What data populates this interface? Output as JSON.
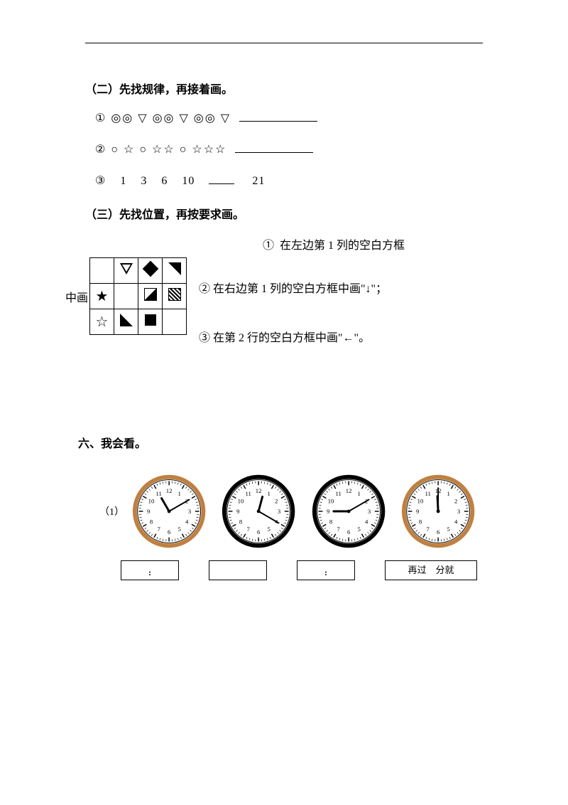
{
  "section2": {
    "title": "（二）先找规律，再接着画。",
    "q1_label": "①",
    "q1_pattern": "◎◎ ▽ ◎◎ ▽ ◎◎ ▽",
    "q2_label": "②",
    "q2_pattern": "○ ☆ ○ ☆☆ ○ ☆☆☆",
    "q3_label": "③",
    "q3_numbers": [
      "1",
      "3",
      "6",
      "10"
    ],
    "q3_tail": "21"
  },
  "section3": {
    "title": "（三）先找位置，再按要求画。",
    "grid_side_label": "中画",
    "instruction1_label": "①",
    "instruction1_text": "在左边第 1 列的空白方框",
    "instruction2_label": "②",
    "instruction2_text": "在右边第 1 列的空白方框中画\"↓\"；",
    "instruction3_label": "③",
    "instruction3_text": "在第 2 行的空白方框中画\"←\"。"
  },
  "section6": {
    "title": "六、我会看。",
    "q_label": "（1）",
    "box4_text": "再过　分就",
    "clocks": [
      {
        "hour_angle": -30,
        "minute_angle": 60,
        "rim": "#c08040"
      },
      {
        "hour_angle": 15,
        "minute_angle": 120,
        "rim": "#000"
      },
      {
        "hour_angle": -90,
        "minute_angle": 60,
        "rim": "#000"
      },
      {
        "hour_angle": -3,
        "minute_angle": 0,
        "rim": "#c08040"
      }
    ]
  }
}
